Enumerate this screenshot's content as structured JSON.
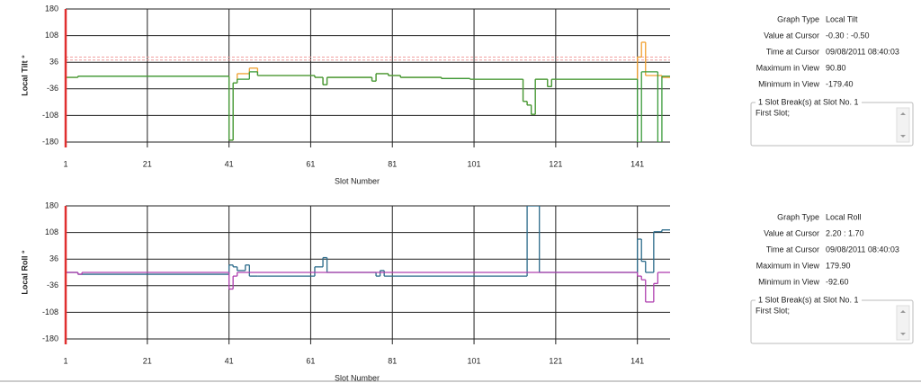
{
  "chart_data": [
    {
      "type": "line",
      "y_label": "Local Tilt °",
      "x_label": "Slot Number",
      "xlim": [
        1,
        149
      ],
      "xticks": [
        1,
        21,
        41,
        61,
        81,
        101,
        121,
        141
      ],
      "ylim": [
        -180,
        180
      ],
      "yticks": [
        180,
        108,
        36,
        -36,
        -108,
        -180
      ],
      "grid": true,
      "step": true,
      "cursor": {
        "x": 1,
        "color": "#e03030"
      },
      "reference_lines": [
        {
          "value": 50,
          "color": "#f0a0a0"
        },
        {
          "value": 42,
          "color": "#f0a0a0"
        }
      ],
      "series": [
        {
          "color": "#f0a030",
          "x": [
            1,
            4,
            41,
            42,
            43,
            46,
            48,
            62,
            64,
            65,
            76,
            77,
            80,
            83,
            93,
            100,
            113,
            114,
            115,
            116,
            119,
            120,
            141,
            142,
            143,
            147
          ],
          "values": [
            -5,
            -2,
            -175,
            -20,
            5,
            20,
            0,
            -5,
            -25,
            -5,
            -15,
            5,
            0,
            -5,
            -8,
            -10,
            -70,
            -80,
            -105,
            -10,
            -30,
            -10,
            50,
            90,
            0,
            -5
          ]
        },
        {
          "color": "#3a9a3a",
          "x": [
            1,
            4,
            41,
            42,
            43,
            46,
            48,
            62,
            64,
            65,
            76,
            77,
            80,
            83,
            93,
            100,
            113,
            114,
            115,
            116,
            119,
            120,
            141,
            142,
            146,
            147
          ],
          "values": [
            -5,
            -2,
            -175,
            -20,
            -10,
            10,
            0,
            -5,
            -25,
            -5,
            -15,
            5,
            0,
            -5,
            -8,
            -10,
            -70,
            -80,
            -105,
            -10,
            -30,
            -10,
            -180,
            10,
            -180,
            -2
          ]
        }
      ]
    },
    {
      "type": "line",
      "y_label": "Local Roll °",
      "x_label": "Slot Number",
      "xlim": [
        1,
        149
      ],
      "xticks": [
        1,
        21,
        41,
        61,
        81,
        101,
        121,
        141
      ],
      "ylim": [
        -180,
        180
      ],
      "yticks": [
        180,
        108,
        36,
        -36,
        -108,
        -180
      ],
      "grid": true,
      "step": true,
      "cursor": {
        "x": 1,
        "color": "#e03030"
      },
      "reference_lines": [],
      "series": [
        {
          "color": "#2a6a8a",
          "x": [
            1,
            4,
            41,
            42,
            43,
            45,
            46,
            48,
            62,
            64,
            65,
            77,
            78,
            79,
            114,
            117,
            141,
            142,
            143,
            145,
            147
          ],
          "values": [
            0,
            -5,
            20,
            15,
            5,
            20,
            -10,
            -10,
            15,
            40,
            0,
            -10,
            5,
            -10,
            180,
            0,
            90,
            30,
            0,
            110,
            115
          ]
        },
        {
          "color": "#b040b0",
          "x": [
            1,
            4,
            5,
            41,
            42,
            43,
            62,
            141,
            142,
            143,
            145,
            146
          ],
          "values": [
            0,
            -5,
            0,
            -45,
            -10,
            0,
            0,
            -10,
            -20,
            -80,
            -30,
            0
          ]
        }
      ]
    }
  ],
  "panels": [
    {
      "rows": [
        {
          "label": "Graph Type",
          "value": "Local Tilt"
        },
        {
          "label": "Value at Cursor",
          "value": "-0.30 : -0.50"
        },
        {
          "label": "Time at Cursor",
          "value": "09/08/2011 08:40:03"
        },
        {
          "label": "Maximum in View",
          "value": "90.80"
        },
        {
          "label": "Minimum in View",
          "value": "-179.40"
        }
      ],
      "break_title": "1 Slot Break(s) at Slot No. 1",
      "break_text": "First Slot;"
    },
    {
      "rows": [
        {
          "label": "Graph Type",
          "value": "Local Roll"
        },
        {
          "label": "Value at Cursor",
          "value": "2.20 : 1.70"
        },
        {
          "label": "Time at Cursor",
          "value": "09/08/2011 08:40:03"
        },
        {
          "label": "Maximum in View",
          "value": "179.90"
        },
        {
          "label": "Minimum in View",
          "value": "-92.60"
        }
      ],
      "break_title": "1 Slot Break(s) at Slot No. 1",
      "break_text": "First Slot;"
    }
  ]
}
